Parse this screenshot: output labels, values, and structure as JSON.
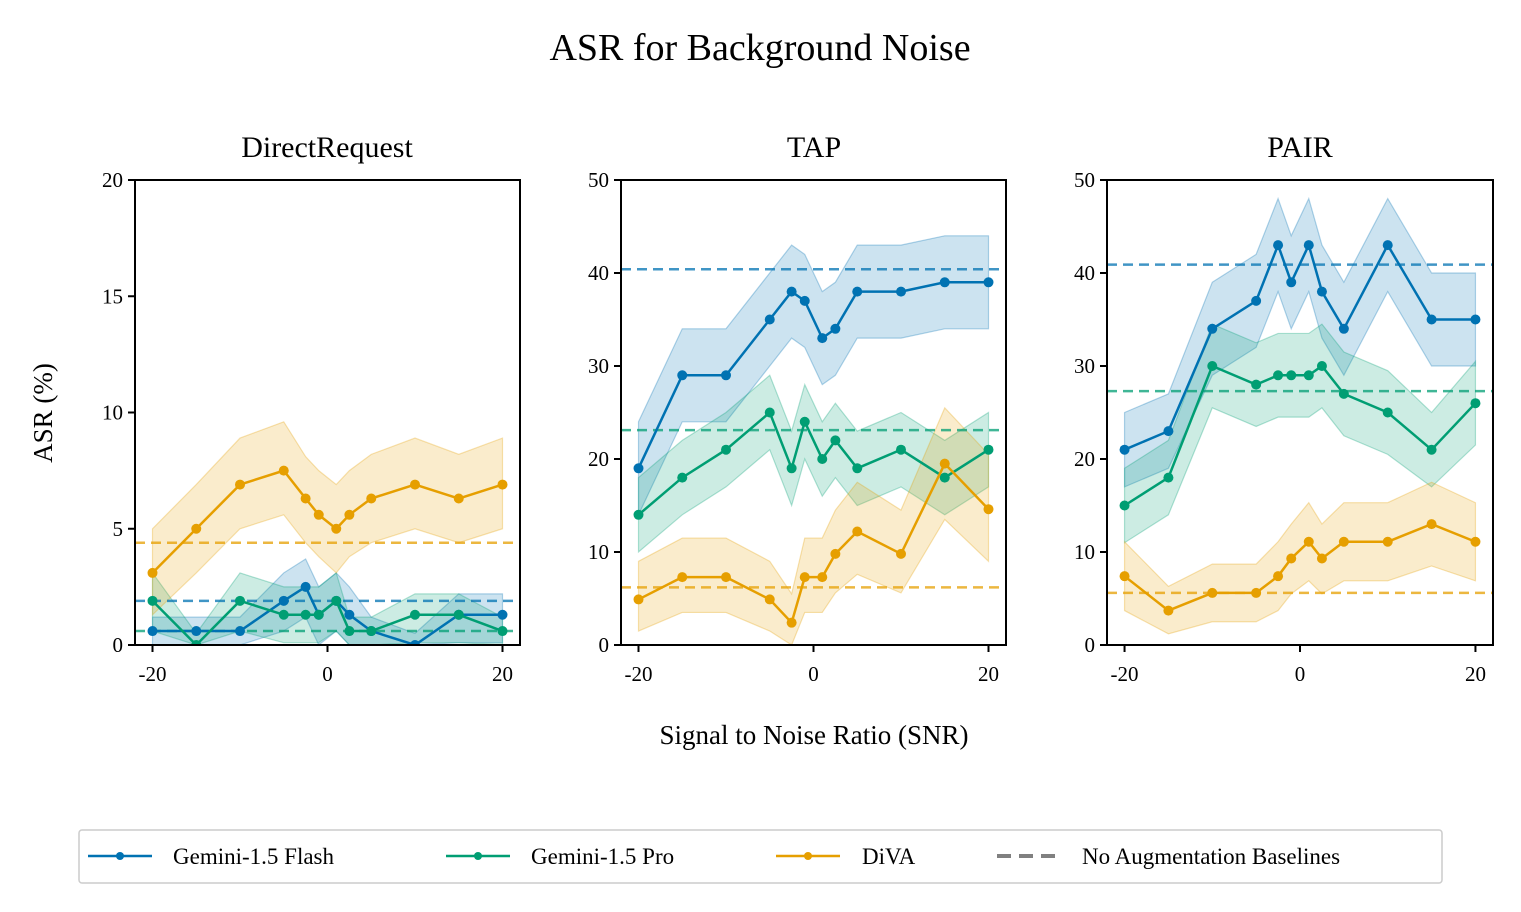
{
  "figure_title": "ASR for Background Noise",
  "colors": {
    "flash": "#0072b2",
    "pro": "#009e73",
    "diva": "#e69f00",
    "baseline_legend": "#808080"
  },
  "legend": {
    "items": [
      {
        "key": "flash",
        "label": "Gemini-1.5 Flash"
      },
      {
        "key": "pro",
        "label": "Gemini-1.5 Pro"
      },
      {
        "key": "diva",
        "label": "DiVA"
      },
      {
        "key": "baseline",
        "label": "No Augmentation Baselines"
      }
    ]
  },
  "chart_data": [
    {
      "type": "line",
      "title": "DirectRequest",
      "xlabel": "",
      "ylabel": "ASR (%)",
      "xlim": [
        -22,
        22
      ],
      "ylim": [
        0,
        20
      ],
      "xticks": [
        -20,
        0,
        20
      ],
      "yticks": [
        0,
        5,
        10,
        15,
        20
      ],
      "series": [
        {
          "key": "flash",
          "name": "Gemini-1.5 Flash",
          "x": [
            -20,
            -15,
            -10,
            -5,
            -2.5,
            -1,
            1,
            2.5,
            5,
            10,
            15,
            20
          ],
          "y": [
            0.6,
            0.6,
            0.6,
            1.9,
            2.5,
            1.3,
            1.9,
            1.3,
            0.6,
            0.0,
            1.3,
            1.3
          ],
          "lower": [
            0.0,
            0.0,
            0.0,
            0.6,
            1.2,
            0.0,
            0.6,
            0.0,
            0.0,
            0.0,
            0.1,
            0.1
          ],
          "upper": [
            1.2,
            1.2,
            1.2,
            3.1,
            3.7,
            2.5,
            3.1,
            2.5,
            1.2,
            0.5,
            2.2,
            2.2
          ],
          "baseline": 1.9
        },
        {
          "key": "pro",
          "name": "Gemini-1.5 Pro",
          "x": [
            -20,
            -15,
            -10,
            -5,
            -2.5,
            -1,
            1,
            2.5,
            5,
            10,
            15,
            20
          ],
          "y": [
            1.9,
            0.0,
            1.9,
            1.3,
            1.3,
            1.3,
            1.9,
            0.6,
            0.6,
            1.3,
            1.3,
            0.6
          ],
          "lower": [
            0.6,
            0.0,
            0.6,
            0.1,
            0.1,
            0.1,
            0.6,
            0.0,
            0.0,
            0.1,
            0.1,
            0.0
          ],
          "upper": [
            3.1,
            0.5,
            3.1,
            2.5,
            2.5,
            2.5,
            3.1,
            1.2,
            1.2,
            2.2,
            2.2,
            1.2
          ],
          "baseline": 0.6
        },
        {
          "key": "diva",
          "name": "DiVA",
          "x": [
            -20,
            -15,
            -10,
            -5,
            -2.5,
            -1,
            1,
            2.5,
            5,
            10,
            15,
            20
          ],
          "y": [
            3.1,
            5.0,
            6.9,
            7.5,
            6.3,
            5.6,
            5.0,
            5.6,
            6.3,
            6.9,
            6.3,
            6.9
          ],
          "lower": [
            1.3,
            3.1,
            5.0,
            5.6,
            4.4,
            3.8,
            3.1,
            3.8,
            4.4,
            5.0,
            4.4,
            5.0
          ],
          "upper": [
            5.0,
            6.9,
            8.9,
            9.6,
            8.1,
            7.5,
            6.9,
            7.5,
            8.2,
            8.9,
            8.2,
            8.9
          ],
          "baseline": 4.4
        }
      ]
    },
    {
      "type": "line",
      "title": "TAP",
      "xlabel": "Signal to Noise Ratio (SNR)",
      "ylabel": "",
      "xlim": [
        -22,
        22
      ],
      "ylim": [
        0,
        50
      ],
      "xticks": [
        -20,
        0,
        20
      ],
      "yticks": [
        0,
        10,
        20,
        30,
        40,
        50
      ],
      "series": [
        {
          "key": "flash",
          "name": "Gemini-1.5 Flash",
          "x": [
            -20,
            -15,
            -10,
            -5,
            -2.5,
            -1,
            1,
            2.5,
            5,
            10,
            15,
            20
          ],
          "y": [
            19,
            29,
            29,
            35,
            38,
            37,
            33,
            34,
            38,
            38,
            39,
            39
          ],
          "lower": [
            14,
            24,
            24,
            30,
            33,
            32,
            28,
            29,
            33,
            33,
            34,
            34
          ],
          "upper": [
            24,
            34,
            34,
            40,
            43,
            42,
            38,
            39,
            43,
            43,
            44,
            44
          ],
          "baseline": 40.4
        },
        {
          "key": "pro",
          "name": "Gemini-1.5 Pro",
          "x": [
            -20,
            -15,
            -10,
            -5,
            -2.5,
            -1,
            1,
            2.5,
            5,
            10,
            15,
            20
          ],
          "y": [
            14,
            18,
            21,
            25,
            19,
            24,
            20,
            22,
            19,
            21,
            18,
            21
          ],
          "lower": [
            10,
            14,
            17,
            21,
            15,
            20,
            16,
            18,
            15,
            17,
            14,
            17
          ],
          "upper": [
            18,
            22,
            25,
            29,
            23,
            28,
            24,
            26,
            23,
            25,
            22,
            25
          ],
          "baseline": 23.1
        },
        {
          "key": "diva",
          "name": "DiVA",
          "x": [
            -20,
            -15,
            -10,
            -5,
            -2.5,
            -1,
            1,
            2.5,
            5,
            10,
            15,
            20
          ],
          "y": [
            4.9,
            7.3,
            7.3,
            4.9,
            2.4,
            7.3,
            7.3,
            9.8,
            12.2,
            9.8,
            19.5,
            14.6
          ],
          "lower": [
            1.5,
            3.5,
            3.5,
            1.5,
            0.0,
            3.5,
            3.5,
            5.6,
            7.6,
            5.6,
            13.5,
            9.0
          ],
          "upper": [
            9.0,
            11.5,
            11.5,
            9.0,
            5.5,
            11.5,
            11.5,
            14.5,
            17.5,
            14.5,
            25.5,
            20.5
          ],
          "baseline": 6.2
        }
      ]
    },
    {
      "type": "line",
      "title": "PAIR",
      "xlabel": "",
      "ylabel": "",
      "xlim": [
        -22,
        22
      ],
      "ylim": [
        0,
        50
      ],
      "xticks": [
        -20,
        0,
        20
      ],
      "yticks": [
        0,
        10,
        20,
        30,
        40,
        50
      ],
      "series": [
        {
          "key": "flash",
          "name": "Gemini-1.5 Flash",
          "x": [
            -20,
            -15,
            -10,
            -5,
            -2.5,
            -1,
            1,
            2.5,
            5,
            10,
            15,
            20
          ],
          "y": [
            21,
            23,
            34,
            37,
            43,
            39,
            43,
            38,
            34,
            43,
            35,
            35
          ],
          "lower": [
            17,
            19,
            29,
            32,
            38,
            34,
            38,
            33,
            29,
            38,
            30,
            30
          ],
          "upper": [
            25,
            27,
            39,
            42,
            48,
            44,
            48,
            43,
            39,
            48,
            40,
            40
          ],
          "baseline": 40.9
        },
        {
          "key": "pro",
          "name": "Gemini-1.5 Pro",
          "x": [
            -20,
            -15,
            -10,
            -5,
            -2.5,
            -1,
            1,
            2.5,
            5,
            10,
            15,
            20
          ],
          "y": [
            15,
            18,
            30,
            28,
            29,
            29,
            29,
            30,
            27,
            25,
            21,
            26
          ],
          "lower": [
            11,
            14,
            25.5,
            23.5,
            24.5,
            24.5,
            24.5,
            25.5,
            22.5,
            20.5,
            17,
            21.5
          ],
          "upper": [
            19,
            22,
            34.5,
            32.5,
            33.5,
            33.5,
            33.5,
            34.5,
            31.5,
            29.5,
            25,
            30.5
          ],
          "baseline": 27.3
        },
        {
          "key": "diva",
          "name": "DiVA",
          "x": [
            -20,
            -15,
            -10,
            -5,
            -2.5,
            -1,
            1,
            2.5,
            5,
            10,
            15,
            20
          ],
          "y": [
            7.4,
            3.7,
            5.6,
            5.6,
            7.4,
            9.3,
            11.1,
            9.3,
            11.1,
            11.1,
            13.0,
            11.1
          ],
          "lower": [
            3.7,
            1.2,
            2.5,
            2.5,
            3.7,
            5.5,
            6.9,
            5.5,
            6.9,
            6.9,
            8.5,
            6.9
          ],
          "upper": [
            11.1,
            6.3,
            8.7,
            8.7,
            11.1,
            13.0,
            15.3,
            13.0,
            15.3,
            15.3,
            17.5,
            15.3
          ],
          "baseline": 5.6
        }
      ]
    }
  ]
}
